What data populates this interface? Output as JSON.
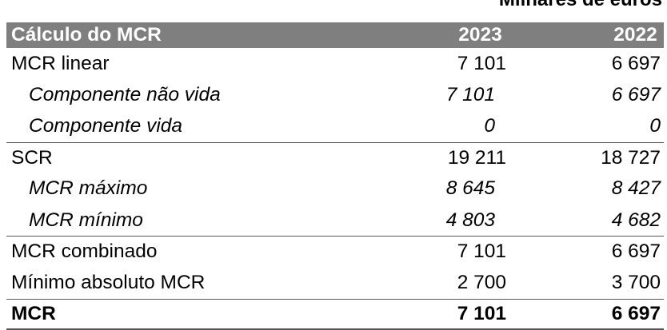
{
  "unit_note": "Milhares de euros",
  "header": {
    "label": "Cálculo do MCR",
    "year1": "2023",
    "year2": "2022"
  },
  "rows": [
    {
      "label": "MCR linear",
      "v2023": "7 101",
      "v2022": "6 697"
    },
    {
      "label": "Componente não vida",
      "v2023": "7 101",
      "v2022": "6 697"
    },
    {
      "label": "Componente vida",
      "v2023": "0",
      "v2022": "0"
    },
    {
      "label": "SCR",
      "v2023": "19 211",
      "v2022": "18 727"
    },
    {
      "label": "MCR máximo",
      "v2023": "8 645",
      "v2022": "8 427"
    },
    {
      "label": "MCR mínimo",
      "v2023": "4 803",
      "v2022": "4 682"
    },
    {
      "label": "MCR combinado",
      "v2023": "7 101",
      "v2022": "6 697"
    },
    {
      "label": "Mínimo absoluto MCR",
      "v2023": "2 700",
      "v2022": "3 700"
    },
    {
      "label": "MCR",
      "v2023": "7 101",
      "v2022": "6 697"
    }
  ]
}
